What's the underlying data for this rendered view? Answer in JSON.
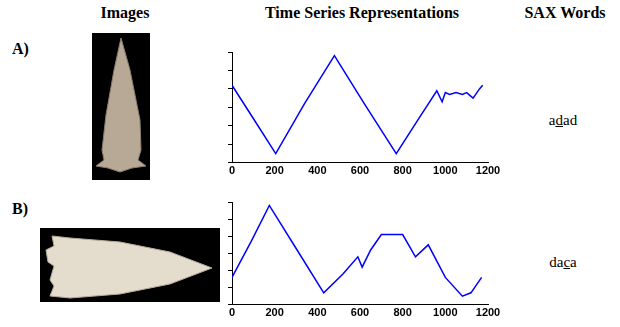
{
  "header": {
    "columns": [
      "Images",
      "Time Series Representations",
      "SAX Words"
    ]
  },
  "rows": [
    {
      "label": "A)",
      "sax_word": {
        "before": "a",
        "underlined": "d",
        "after": "ad"
      }
    },
    {
      "label": "B)",
      "sax_word": {
        "before": "da",
        "underlined": "c",
        "after": "a"
      }
    }
  ],
  "chart_data": [
    {
      "type": "line",
      "color": "#0000ff",
      "grid": false,
      "tick_labels": "x",
      "x": [
        0,
        100,
        205,
        340,
        480,
        620,
        770,
        870,
        960,
        985,
        1000,
        1020,
        1050,
        1080,
        1100,
        1130,
        1160,
        1175
      ],
      "values": [
        4.2,
        2.4,
        0.5,
        3.2,
        5.8,
        3.2,
        0.5,
        2.3,
        3.9,
        3.3,
        3.8,
        3.7,
        3.8,
        3.7,
        3.8,
        3.5,
        4.0,
        4.2
      ],
      "xlim": [
        0,
        1200
      ],
      "xticks": [
        0,
        200,
        400,
        600,
        800,
        1000,
        1200
      ],
      "ylim": [
        0,
        6
      ],
      "yticks": [
        0,
        1,
        2,
        3,
        4,
        5,
        6
      ]
    },
    {
      "type": "line",
      "color": "#0000ff",
      "grid": false,
      "tick_labels": "x",
      "x": [
        0,
        90,
        175,
        300,
        430,
        520,
        590,
        610,
        650,
        700,
        800,
        860,
        920,
        1000,
        1080,
        1120,
        1170
      ],
      "values": [
        1.6,
        3.7,
        5.8,
        3.3,
        0.7,
        1.8,
        2.8,
        2.2,
        3.2,
        4.1,
        4.1,
        2.8,
        3.5,
        1.6,
        0.5,
        0.7,
        1.6
      ],
      "xlim": [
        0,
        1200
      ],
      "xticks": [
        0,
        200,
        400,
        600,
        800,
        1000,
        1200
      ],
      "ylim": [
        0,
        6
      ],
      "yticks": [
        0,
        1,
        2,
        3,
        4,
        5,
        6
      ]
    }
  ]
}
